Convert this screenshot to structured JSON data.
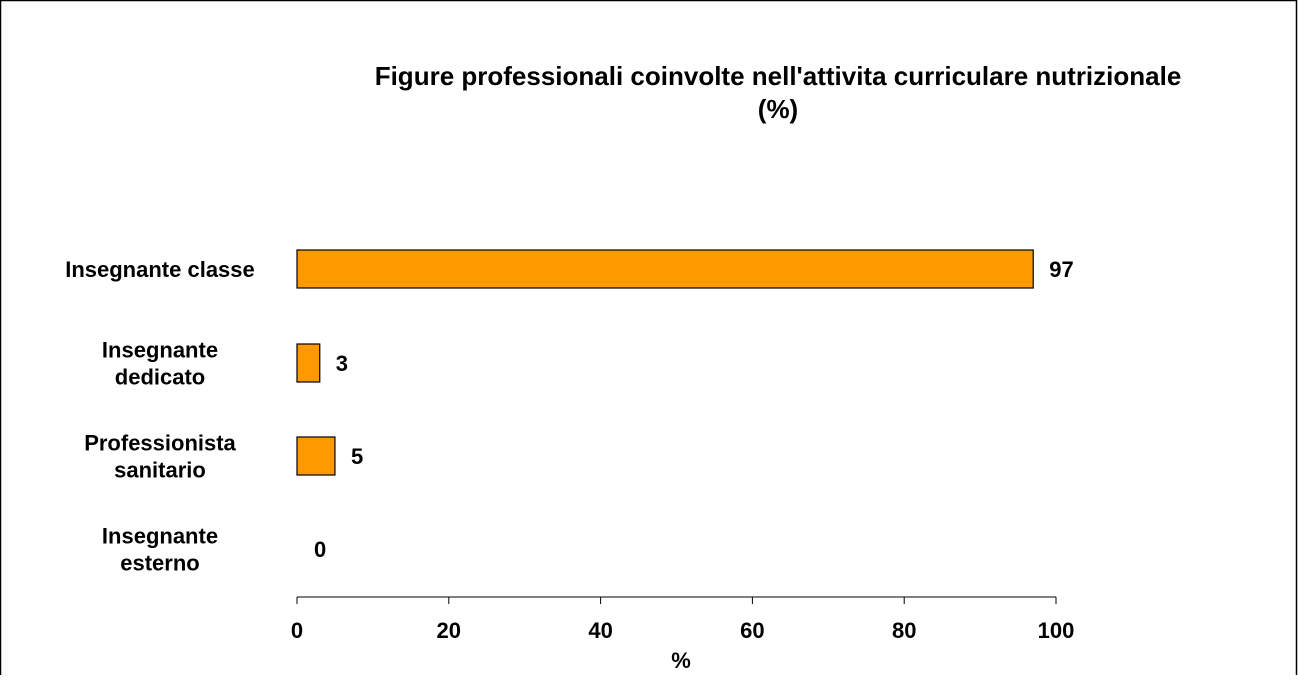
{
  "chart_data": {
    "type": "bar",
    "orientation": "horizontal",
    "title": "Figure professionali coinvolte nell'attivita curriculare nutrizionale",
    "subtitle": "(%)",
    "xlabel": "%",
    "ylabel": "",
    "xlim": [
      0,
      100
    ],
    "xticks": [
      0,
      20,
      40,
      60,
      80,
      100
    ],
    "grid": false,
    "legend": "none",
    "bar_color": "#FF9900",
    "categories": [
      [
        "Insegnante classe"
      ],
      [
        "Insegnante",
        "dedicato"
      ],
      [
        "Professionista",
        "sanitario"
      ],
      [
        "Insegnante",
        "esterno"
      ]
    ],
    "values": [
      97,
      3,
      5,
      0
    ],
    "data_labels": [
      "97",
      "3",
      "5",
      "0"
    ]
  }
}
